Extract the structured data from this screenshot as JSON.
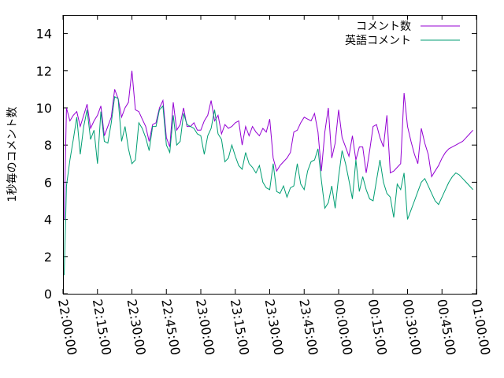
{
  "chart_data": {
    "type": "line",
    "title": "",
    "xlabel": "",
    "ylabel": "1秒毎のコメント数",
    "ylim": [
      0,
      15
    ],
    "yticks": [
      0,
      2,
      4,
      6,
      8,
      10,
      12,
      14
    ],
    "xlim": [
      "22:00:00",
      "01:00:00"
    ],
    "xticks": [
      "22:00:00",
      "22:15:00",
      "22:30:00",
      "22:45:00",
      "23:00:00",
      "23:15:00",
      "23:30:00",
      "23:45:00",
      "00:00:00",
      "00:15:00",
      "00:30:00",
      "00:45:00",
      "01:00:00"
    ],
    "grid": false,
    "legend_position": "top-right",
    "series": [
      {
        "name": "コメント数",
        "color": "#9400d3",
        "x": [
          "22:00:30",
          "22:01:30",
          "22:03:00",
          "22:04:30",
          "22:06:00",
          "22:07:30",
          "22:09:00",
          "22:10:30",
          "22:12:00",
          "22:13:30",
          "22:15:00",
          "22:16:30",
          "22:18:00",
          "22:19:30",
          "22:21:00",
          "22:22:30",
          "22:24:00",
          "22:25:30",
          "22:27:00",
          "22:28:30",
          "22:30:00",
          "22:31:30",
          "22:33:00",
          "22:34:30",
          "22:36:00",
          "22:37:30",
          "22:39:00",
          "22:40:30",
          "22:42:00",
          "22:43:30",
          "22:45:00",
          "22:46:30",
          "22:48:00",
          "22:49:30",
          "22:51:00",
          "22:52:30",
          "22:54:00",
          "22:55:30",
          "22:57:00",
          "22:58:30",
          "23:00:00",
          "23:01:30",
          "23:03:00",
          "23:04:30",
          "23:06:00",
          "23:07:30",
          "23:09:00",
          "23:10:30",
          "23:12:00",
          "23:13:30",
          "23:15:00",
          "23:16:30",
          "23:18:00",
          "23:19:30",
          "23:21:00",
          "23:22:30",
          "23:24:00",
          "23:25:30",
          "23:27:00",
          "23:28:30",
          "23:30:00",
          "23:31:30",
          "23:33:00",
          "23:34:30",
          "23:36:00",
          "23:37:30",
          "23:39:00",
          "23:40:30",
          "23:42:00",
          "23:43:30",
          "23:45:00",
          "23:46:30",
          "23:48:00",
          "23:49:30",
          "23:51:00",
          "23:52:30",
          "23:54:00",
          "23:55:30",
          "23:57:00",
          "23:58:30",
          "00:00:00",
          "00:01:30",
          "00:03:00",
          "00:04:30",
          "00:06:00",
          "00:07:30",
          "00:09:00",
          "00:10:30",
          "00:12:00",
          "00:13:30",
          "00:15:00",
          "00:16:30",
          "00:18:00",
          "00:19:30",
          "00:21:00",
          "00:22:30",
          "00:24:00",
          "00:25:30",
          "00:27:00",
          "00:28:30",
          "00:30:00",
          "00:31:30",
          "00:33:00",
          "00:34:30",
          "00:36:00",
          "00:37:30",
          "00:39:00",
          "00:40:30",
          "00:42:00",
          "00:43:30",
          "00:45:00",
          "00:46:30",
          "00:48:00",
          "00:49:30",
          "00:51:00",
          "00:52:30",
          "00:54:00",
          "00:55:30",
          "00:57:00",
          "00:58:30"
        ],
        "values": [
          4.0,
          10.0,
          9.3,
          9.6,
          9.8,
          9.0,
          9.6,
          10.2,
          8.9,
          9.3,
          9.6,
          10.1,
          8.5,
          9.0,
          9.5,
          11.0,
          10.5,
          9.5,
          10.0,
          10.3,
          12.0,
          9.9,
          9.8,
          9.4,
          9.0,
          8.2,
          9.1,
          9.2,
          10.0,
          10.4,
          8.4,
          7.9,
          10.3,
          8.8,
          9.1,
          10.0,
          9.0,
          9.0,
          9.2,
          8.8,
          8.8,
          9.3,
          9.6,
          10.4,
          9.3,
          9.6,
          8.6,
          9.1,
          8.9,
          9.0,
          9.2,
          9.3,
          8.0,
          9.0,
          8.5,
          9.0,
          8.7,
          8.5,
          8.9,
          8.7,
          9.4,
          7.3,
          6.6,
          6.9,
          7.1,
          7.3,
          7.6,
          8.7,
          8.8,
          9.2,
          9.5,
          9.4,
          9.3,
          9.7,
          8.7,
          6.6,
          8.7,
          10.0,
          7.3,
          8.1,
          9.9,
          8.4,
          7.9,
          7.4,
          8.5,
          7.2,
          7.9,
          7.9,
          6.5,
          7.7,
          9.0,
          9.1,
          8.4,
          7.9,
          9.6,
          6.5,
          6.6,
          6.8,
          7.0,
          10.8,
          9.0,
          8.2,
          7.5,
          7.0,
          8.9,
          8.1,
          7.5,
          6.3,
          6.6,
          6.9,
          7.3,
          7.6,
          7.8,
          7.9,
          8.0,
          8.1,
          8.2,
          8.4,
          8.6,
          8.8
        ]
      },
      {
        "name": "英語コメント",
        "color": "#009e73",
        "x": [
          "22:00:30",
          "22:01:30",
          "22:03:00",
          "22:04:30",
          "22:06:00",
          "22:07:30",
          "22:09:00",
          "22:10:30",
          "22:12:00",
          "22:13:30",
          "22:15:00",
          "22:16:30",
          "22:18:00",
          "22:19:30",
          "22:21:00",
          "22:22:30",
          "22:24:00",
          "22:25:30",
          "22:27:00",
          "22:28:30",
          "22:30:00",
          "22:31:30",
          "22:33:00",
          "22:34:30",
          "22:36:00",
          "22:37:30",
          "22:39:00",
          "22:40:30",
          "22:42:00",
          "22:43:30",
          "22:45:00",
          "22:46:30",
          "22:48:00",
          "22:49:30",
          "22:51:00",
          "22:52:30",
          "22:54:00",
          "22:55:30",
          "22:57:00",
          "22:58:30",
          "23:00:00",
          "23:01:30",
          "23:03:00",
          "23:04:30",
          "23:06:00",
          "23:07:30",
          "23:09:00",
          "23:10:30",
          "23:12:00",
          "23:13:30",
          "23:15:00",
          "23:16:30",
          "23:18:00",
          "23:19:30",
          "23:21:00",
          "23:22:30",
          "23:24:00",
          "23:25:30",
          "23:27:00",
          "23:28:30",
          "23:30:00",
          "23:31:30",
          "23:33:00",
          "23:34:30",
          "23:36:00",
          "23:37:30",
          "23:39:00",
          "23:40:30",
          "23:42:00",
          "23:43:30",
          "23:45:00",
          "23:46:30",
          "23:48:00",
          "23:49:30",
          "23:51:00",
          "23:52:30",
          "23:54:00",
          "23:55:30",
          "23:57:00",
          "23:58:30",
          "00:00:00",
          "00:01:30",
          "00:03:00",
          "00:04:30",
          "00:06:00",
          "00:07:30",
          "00:09:00",
          "00:10:30",
          "00:12:00",
          "00:13:30",
          "00:15:00",
          "00:16:30",
          "00:18:00",
          "00:19:30",
          "00:21:00",
          "00:22:30",
          "00:24:00",
          "00:25:30",
          "00:27:00",
          "00:28:30",
          "00:30:00",
          "00:31:30",
          "00:33:00",
          "00:34:30",
          "00:36:00",
          "00:37:30",
          "00:39:00",
          "00:40:30",
          "00:42:00",
          "00:43:30",
          "00:45:00",
          "00:46:30",
          "00:48:00",
          "00:49:30",
          "00:51:00",
          "00:52:30",
          "00:54:00",
          "00:55:30",
          "00:57:00",
          "00:58:30"
        ],
        "values": [
          1.0,
          5.8,
          7.2,
          8.3,
          9.5,
          7.5,
          9.0,
          9.9,
          8.3,
          8.8,
          7.0,
          9.8,
          8.2,
          8.1,
          9.2,
          10.6,
          10.5,
          8.2,
          9.0,
          7.8,
          7.0,
          7.2,
          9.2,
          8.9,
          8.4,
          7.7,
          9.0,
          9.0,
          9.9,
          10.1,
          8.0,
          7.6,
          9.6,
          8.0,
          8.2,
          9.7,
          9.1,
          9.0,
          8.9,
          8.6,
          8.5,
          7.5,
          8.5,
          8.9,
          9.9,
          8.6,
          8.3,
          7.1,
          7.3,
          8.0,
          7.4,
          6.9,
          6.7,
          7.6,
          7.0,
          6.8,
          6.5,
          6.9,
          6.0,
          5.7,
          5.6,
          7.0,
          5.5,
          5.4,
          5.8,
          5.2,
          5.7,
          5.8,
          7.0,
          5.9,
          5.6,
          6.6,
          7.1,
          7.2,
          7.8,
          6.1,
          4.6,
          4.9,
          5.8,
          4.6,
          6.3,
          7.7,
          7.0,
          6.1,
          5.1,
          7.2,
          5.5,
          6.3,
          5.6,
          5.1,
          5.0,
          6.1,
          7.2,
          6.0,
          5.4,
          5.2,
          4.1,
          5.9,
          5.6,
          6.5,
          4.0,
          4.5,
          5.0,
          5.5,
          6.0,
          6.2,
          5.8,
          5.4,
          5.0,
          4.8,
          5.2,
          5.6,
          6.0,
          6.3,
          6.5,
          6.4,
          6.2,
          6.0,
          5.8,
          5.6
        ]
      }
    ]
  }
}
